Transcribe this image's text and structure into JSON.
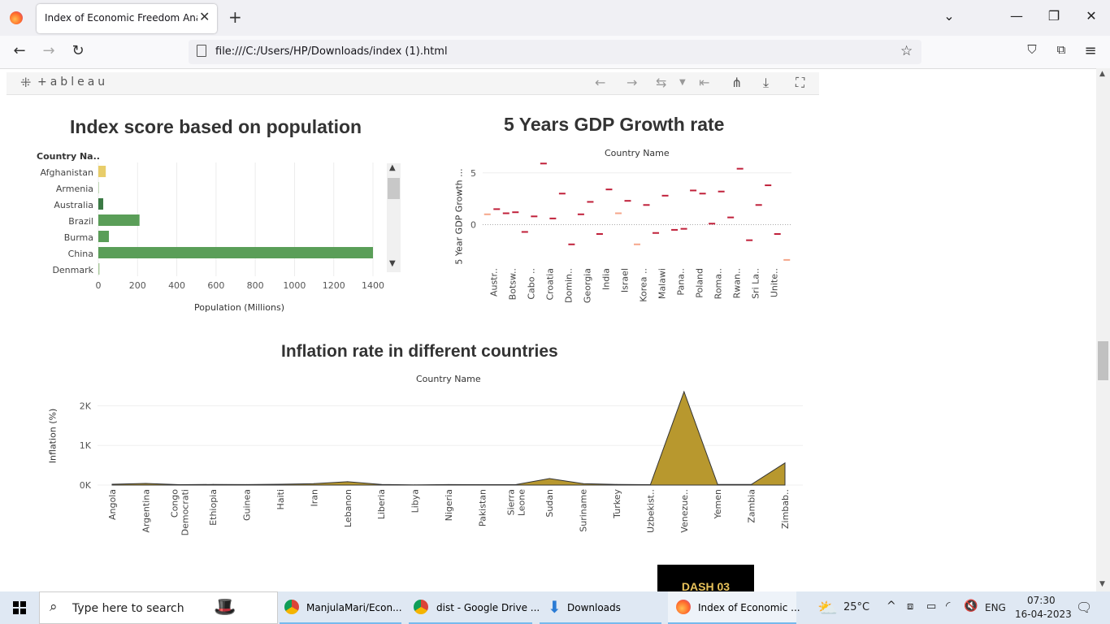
{
  "browser": {
    "tab_title": "Index of Economic Freedom Analysi",
    "tab_close": "✕",
    "new_tab": "+",
    "url": "file:///C:/Users/HP/Downloads/index (1).html",
    "window_controls": [
      "⌄",
      "—",
      "❐",
      "✕"
    ]
  },
  "tableau": {
    "logo": "+ableau"
  },
  "chart1": {
    "title": "Index score based on population",
    "col_header": "Country Na..",
    "xlabel": "Population (Millions)"
  },
  "chart2": {
    "title": "5 Years GDP Growth rate",
    "col_header": "Country Name",
    "ylabel": "5 Year GDP Growth ..."
  },
  "chart3": {
    "title": "Inflation rate in different countries",
    "col_header": "Country Name",
    "ylabel": "Inflation (%)"
  },
  "chart_data": [
    {
      "type": "bar",
      "title": "Index score based on population",
      "xlabel": "Population (Millions)",
      "ylabel": "Country Na..",
      "categories": [
        "Afghanistan",
        "Armenia",
        "Australia",
        "Brazil",
        "Burma",
        "China",
        "Denmark"
      ],
      "values": [
        38,
        3,
        25,
        210,
        54,
        1400,
        6
      ],
      "colors": [
        "#e8cd6a",
        "#a8c99b",
        "#3b7a45",
        "#5a9e58",
        "#5a9e58",
        "#5a9e58",
        "#a8c99b"
      ],
      "xlim": [
        0,
        1450
      ],
      "xticks": [
        0,
        200,
        400,
        600,
        800,
        1000,
        1200,
        1400
      ],
      "grid": true
    },
    {
      "type": "scatter",
      "title": "5 Years GDP Growth rate",
      "xlabel": "Country Name",
      "ylabel": "5 Year GDP Growth ...",
      "categories": [
        "Austr..",
        "Botsw..",
        "Cabo ..",
        "Croatia",
        "Domin..",
        "Georgia",
        "India",
        "Israel",
        "Korea ..",
        "Malawi",
        "Pana..",
        "Poland",
        "Roma..",
        "Rwan..",
        "Sri La..",
        "Unite.."
      ],
      "x_count": 33,
      "values": [
        1.0,
        1.5,
        1.1,
        1.2,
        -0.7,
        0.8,
        5.9,
        0.6,
        3.0,
        -1.9,
        1.0,
        2.2,
        -0.9,
        3.4,
        1.1,
        2.3,
        -1.9,
        1.9,
        -0.8,
        2.8,
        -0.5,
        -0.4,
        3.3,
        3.0,
        0.1,
        3.2,
        0.7,
        5.4,
        -1.5,
        1.9,
        3.8,
        -0.9,
        -3.4
      ],
      "ylim": [
        -3.8,
        6.0
      ],
      "yticks": [
        0,
        5
      ],
      "colors": {
        "main": "#c0203a",
        "light": "#f5a68a"
      },
      "grid": true
    },
    {
      "type": "area",
      "title": "Inflation rate in different countries",
      "xlabel": "Country Name",
      "ylabel": "Inflation (%)",
      "categories": [
        "Angola",
        "Argentina",
        "Congo Democrati",
        "Ethiopia",
        "Guinea",
        "Haiti",
        "Iran",
        "Lebanon",
        "Liberia",
        "Libya",
        "Nigeria",
        "Pakistan",
        "Sierra Leone",
        "Sudan",
        "Suriname",
        "Turkey",
        "Uzbekist..",
        "Venezue..",
        "Yemen",
        "Zambia",
        "Zimbab.."
      ],
      "values": [
        20,
        40,
        10,
        15,
        12,
        20,
        35,
        85,
        15,
        5,
        12,
        10,
        12,
        165,
        35,
        15,
        10,
        2355,
        15,
        15,
        557
      ],
      "yticks": [
        "0K",
        "1K",
        "2K"
      ],
      "ylim": [
        0,
        2500
      ],
      "color": "#b8982e",
      "grid": true
    }
  ],
  "dashboard_button": "DASH 03",
  "taskbar": {
    "search_placeholder": "Type here to search",
    "apps": [
      "ManjulaMari/Econ...",
      "dist - Google Drive ...",
      "Downloads",
      "Index of Economic ..."
    ],
    "weather": "25°C",
    "lang": "ENG",
    "time": "07:30",
    "date": "16-04-2023"
  }
}
